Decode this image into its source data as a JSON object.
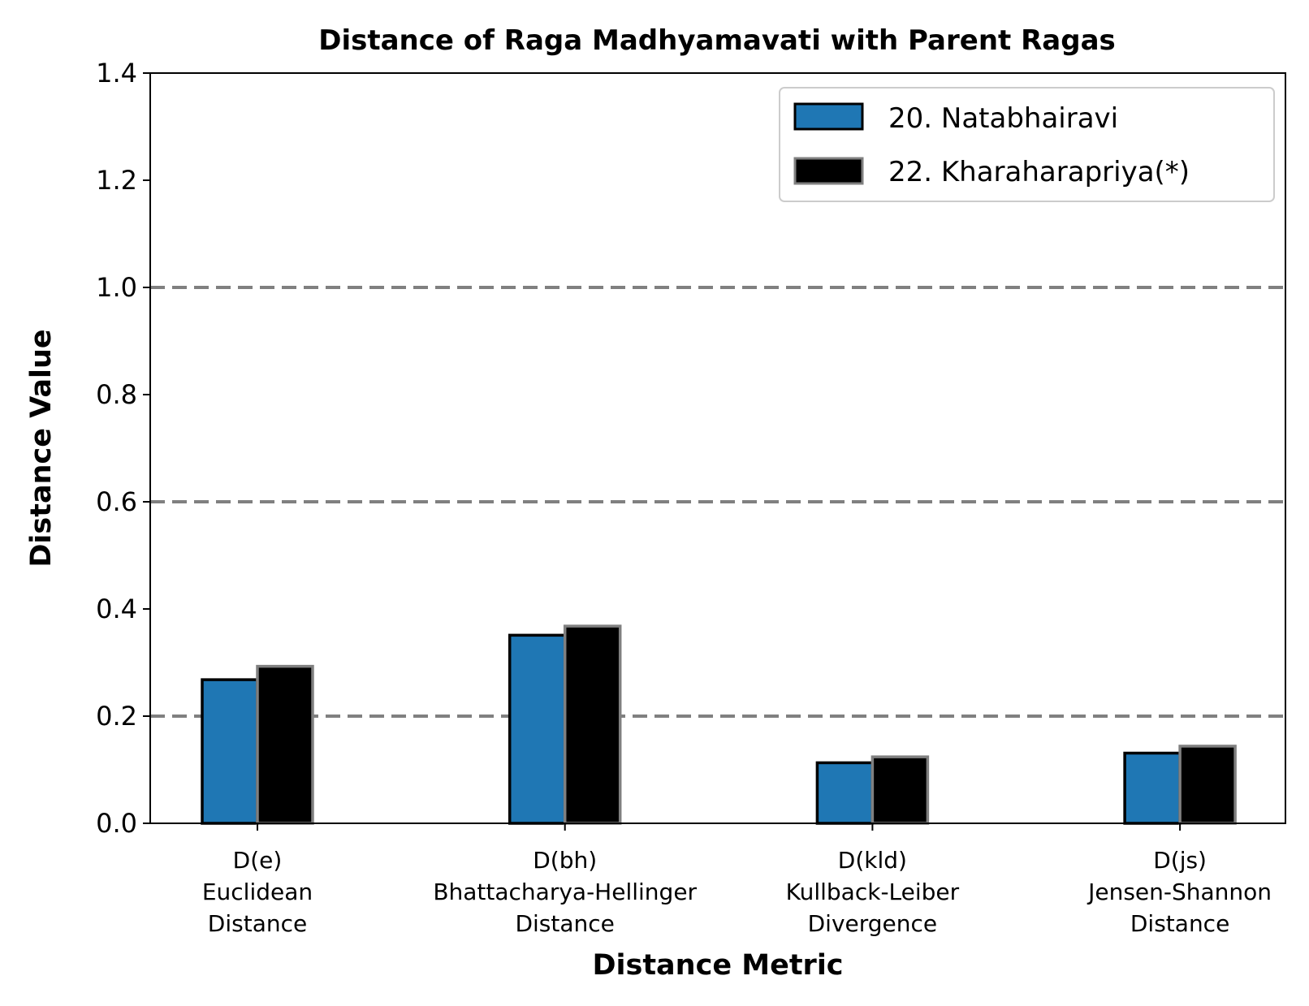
{
  "chart_data": {
    "type": "bar",
    "title": "Distance of Raga Madhyamavati with Parent Ragas",
    "xlabel": "Distance Metric",
    "ylabel": "Distance Value",
    "ylim": [
      0,
      1.4
    ],
    "yticks": [
      "0.0",
      "0.2",
      "0.4",
      "0.6",
      "0.8",
      "1.0",
      "1.2",
      "1.4"
    ],
    "reference_lines": [
      0.2,
      0.6,
      1.0
    ],
    "categories": [
      [
        "D(e)",
        "Euclidean",
        "Distance"
      ],
      [
        "D(bh)",
        "Bhattacharya-Hellinger",
        "Distance"
      ],
      [
        "D(kld)",
        "Kullback-Leiber",
        "Divergence"
      ],
      [
        "D(js)",
        "Jensen-Shannon",
        "Distance"
      ]
    ],
    "series": [
      {
        "name": "20. Natabhairavi",
        "color": "#1f77b4",
        "edge_color": "#000000",
        "values": [
          0.268,
          0.351,
          0.113,
          0.131
        ]
      },
      {
        "name": "22. Kharaharapriya(*)",
        "color": "#000000",
        "edge_color": "#808080",
        "values": [
          0.293,
          0.368,
          0.124,
          0.144
        ]
      }
    ],
    "grid": false,
    "legend_position": "top-right"
  }
}
